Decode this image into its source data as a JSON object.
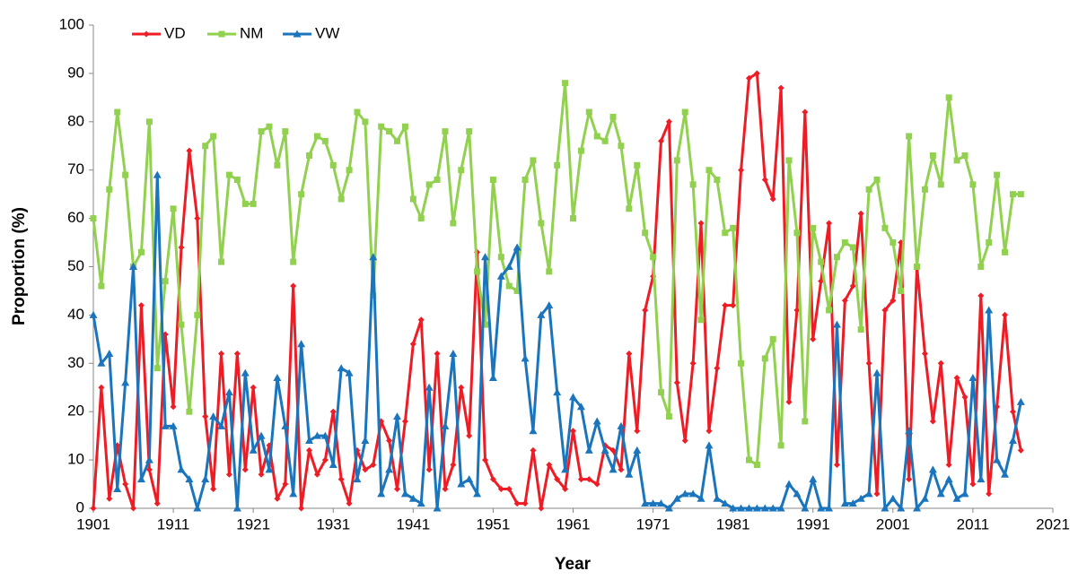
{
  "chart_data": {
    "type": "line",
    "x_label": "Year",
    "y_label": "Proportion (%)",
    "x": [
      1901,
      1902,
      1903,
      1904,
      1905,
      1906,
      1907,
      1908,
      1909,
      1910,
      1911,
      1912,
      1913,
      1914,
      1915,
      1916,
      1917,
      1918,
      1919,
      1920,
      1921,
      1922,
      1923,
      1924,
      1925,
      1926,
      1927,
      1928,
      1929,
      1930,
      1931,
      1932,
      1933,
      1934,
      1935,
      1936,
      1937,
      1938,
      1939,
      1940,
      1941,
      1942,
      1943,
      1944,
      1945,
      1946,
      1947,
      1948,
      1949,
      1950,
      1951,
      1952,
      1953,
      1954,
      1955,
      1956,
      1957,
      1958,
      1959,
      1960,
      1961,
      1962,
      1963,
      1964,
      1965,
      1966,
      1967,
      1968,
      1969,
      1970,
      1971,
      1972,
      1973,
      1974,
      1975,
      1976,
      1977,
      1978,
      1979,
      1980,
      1981,
      1982,
      1983,
      1984,
      1985,
      1986,
      1987,
      1988,
      1989,
      1990,
      1991,
      1992,
      1993,
      1994,
      1995,
      1996,
      1997,
      1998,
      1999,
      2000,
      2001,
      2002,
      2003,
      2004,
      2005,
      2006,
      2007,
      2008,
      2009,
      2010,
      2011,
      2012,
      2013,
      2014,
      2015,
      2016,
      2017
    ],
    "series": [
      {
        "name": "VD",
        "color": "#ee1c25",
        "marker": "diamond",
        "values": [
          0,
          25,
          2,
          13,
          5,
          0,
          42,
          8,
          1,
          36,
          21,
          54,
          74,
          60,
          19,
          4,
          32,
          7,
          32,
          8,
          25,
          7,
          13,
          2,
          5,
          46,
          0,
          12,
          7,
          10,
          20,
          6,
          1,
          12,
          8,
          9,
          18,
          14,
          4,
          18,
          34,
          39,
          8,
          32,
          4,
          9,
          25,
          15,
          53,
          10,
          6,
          4,
          4,
          1,
          1,
          12,
          0,
          9,
          6,
          4,
          16,
          6,
          6,
          5,
          13,
          12,
          8,
          32,
          16,
          41,
          48,
          76,
          80,
          26,
          14,
          30,
          59,
          16,
          29,
          42,
          42,
          70,
          89,
          90,
          68,
          64,
          87,
          22,
          41,
          82,
          35,
          47,
          59,
          9,
          43,
          46,
          61,
          30,
          3,
          41,
          43,
          55,
          6,
          50,
          32,
          18,
          30,
          9,
          27,
          23,
          5,
          44,
          3,
          21,
          40,
          20,
          12
        ]
      },
      {
        "name": "NM",
        "color": "#92d050",
        "marker": "square",
        "values": [
          60,
          46,
          66,
          82,
          69,
          50,
          53,
          80,
          29,
          47,
          62,
          38,
          20,
          40,
          75,
          77,
          51,
          69,
          68,
          63,
          63,
          78,
          79,
          71,
          78,
          51,
          65,
          73,
          77,
          76,
          71,
          64,
          70,
          82,
          80,
          44,
          79,
          78,
          76,
          79,
          64,
          60,
          67,
          68,
          78,
          59,
          70,
          78,
          49,
          38,
          68,
          52,
          46,
          45,
          68,
          72,
          59,
          49,
          71,
          88,
          60,
          74,
          82,
          77,
          76,
          81,
          75,
          62,
          71,
          57,
          52,
          24,
          19,
          72,
          82,
          67,
          39,
          70,
          68,
          57,
          58,
          30,
          10,
          9,
          31,
          35,
          13,
          72,
          57,
          18,
          58,
          51,
          41,
          52,
          55,
          54,
          37,
          66,
          68,
          58,
          55,
          45,
          77,
          50,
          66,
          73,
          67,
          85,
          72,
          73,
          67,
          50,
          55,
          69,
          53,
          65,
          65
        ]
      },
      {
        "name": "VW",
        "color": "#1b75bc",
        "marker": "triangle",
        "values": [
          40,
          30,
          32,
          4,
          26,
          50,
          6,
          10,
          69,
          17,
          17,
          8,
          6,
          0,
          6,
          19,
          17,
          24,
          0,
          28,
          12,
          15,
          8,
          27,
          17,
          3,
          34,
          14,
          15,
          15,
          9,
          29,
          28,
          6,
          14,
          52,
          3,
          8,
          19,
          3,
          2,
          1,
          25,
          0,
          17,
          32,
          5,
          6,
          3,
          52,
          27,
          48,
          50,
          54,
          31,
          16,
          40,
          42,
          24,
          8,
          23,
          21,
          12,
          18,
          12,
          8,
          17,
          7,
          12,
          1,
          1,
          1,
          0,
          2,
          3,
          3,
          2,
          13,
          2,
          1,
          0,
          0,
          0,
          0,
          0,
          0,
          0,
          5,
          3,
          0,
          6,
          0,
          0,
          38,
          1,
          1,
          2,
          3,
          28,
          0,
          2,
          0,
          16,
          0,
          2,
          8,
          3,
          6,
          2,
          3,
          27,
          6,
          41,
          10,
          7,
          14,
          22
        ]
      }
    ],
    "xlim": [
      1901,
      2021
    ],
    "xticks": [
      1901,
      1911,
      1921,
      1931,
      1941,
      1951,
      1961,
      1971,
      1981,
      1991,
      2001,
      2011,
      2021
    ],
    "ylim": [
      0,
      100
    ],
    "yticks": [
      0,
      10,
      20,
      30,
      40,
      50,
      60,
      70,
      80,
      90,
      100
    ],
    "legend": "top-left",
    "grid": false
  }
}
